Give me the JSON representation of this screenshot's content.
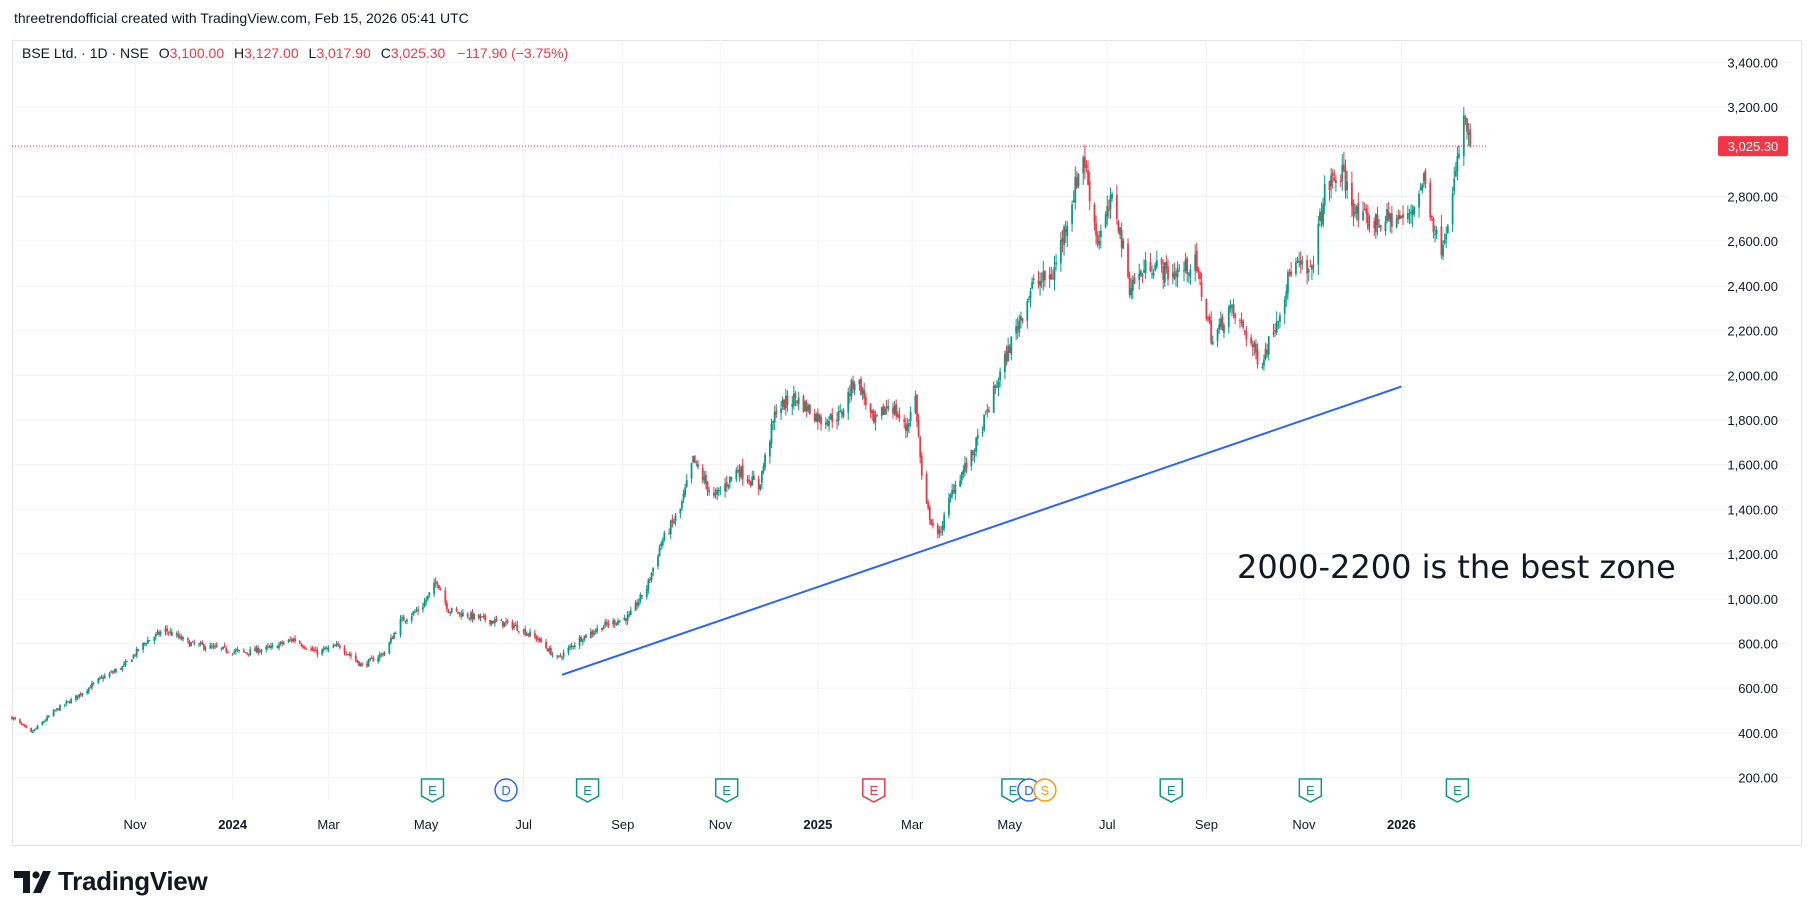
{
  "header": {
    "attribution": "threetrendofficial created with TradingView.com, Feb 15, 2026 05:41 UTC"
  },
  "legend": {
    "symbol": "BSE Ltd. · 1D · NSE",
    "o_label": "O",
    "o_value": "3,100.00",
    "h_label": "H",
    "h_value": "3,127.00",
    "l_label": "L",
    "l_value": "3,017.90",
    "c_label": "C",
    "c_value": "3,025.30",
    "change": "−117.90 (−3.75%)"
  },
  "brand": {
    "wordmark": "TradingView",
    "icon": "tradingview-logo-icon"
  },
  "colors": {
    "up": "#089981",
    "down": "#f23645",
    "trendline": "#2962ff",
    "grid": "#f0f3fa",
    "price_label_bg": "#f23645"
  },
  "chart_data": {
    "type": "candlestick",
    "title": "BSE Ltd. · 1D · NSE",
    "xlabel": "",
    "ylabel": "",
    "ylim": [
      100,
      3500
    ],
    "x_range": [
      "2023-08-16",
      "2026-02-16"
    ],
    "y_ticks": [
      {
        "value": 200,
        "label": "200.00"
      },
      {
        "value": 400,
        "label": "400.00"
      },
      {
        "value": 600,
        "label": "600.00"
      },
      {
        "value": 800,
        "label": "800.00"
      },
      {
        "value": 1000,
        "label": "1,000.00"
      },
      {
        "value": 1200,
        "label": "1,200.00"
      },
      {
        "value": 1400,
        "label": "1,400.00"
      },
      {
        "value": 1600,
        "label": "1,600.00"
      },
      {
        "value": 1800,
        "label": "1,800.00"
      },
      {
        "value": 2000,
        "label": "2,000.00"
      },
      {
        "value": 2200,
        "label": "2,200.00"
      },
      {
        "value": 2400,
        "label": "2,400.00"
      },
      {
        "value": 2600,
        "label": "2,600.00"
      },
      {
        "value": 2800,
        "label": "2,800.00"
      },
      {
        "value": 3200,
        "label": "3,200.00"
      },
      {
        "value": 3400,
        "label": "3,400.00"
      }
    ],
    "x_ticks": [
      {
        "date": "2023-11-01",
        "label": "Nov",
        "bold": false
      },
      {
        "date": "2024-01-01",
        "label": "2024",
        "bold": true
      },
      {
        "date": "2024-03-01",
        "label": "Mar",
        "bold": false
      },
      {
        "date": "2024-05-01",
        "label": "May",
        "bold": false
      },
      {
        "date": "2024-07-01",
        "label": "Jul",
        "bold": false
      },
      {
        "date": "2024-09-01",
        "label": "Sep",
        "bold": false
      },
      {
        "date": "2024-11-01",
        "label": "Nov",
        "bold": false
      },
      {
        "date": "2025-01-01",
        "label": "2025",
        "bold": true
      },
      {
        "date": "2025-03-01",
        "label": "Mar",
        "bold": false
      },
      {
        "date": "2025-05-01",
        "label": "May",
        "bold": false
      },
      {
        "date": "2025-07-01",
        "label": "Jul",
        "bold": false
      },
      {
        "date": "2025-09-01",
        "label": "Sep",
        "bold": false
      },
      {
        "date": "2025-11-01",
        "label": "Nov",
        "bold": false
      },
      {
        "date": "2026-01-01",
        "label": "2026",
        "bold": true
      }
    ],
    "price_path": [
      [
        "2023-08-16",
        470
      ],
      [
        "2023-08-28",
        400
      ],
      [
        "2023-09-12",
        500
      ],
      [
        "2023-09-25",
        560
      ],
      [
        "2023-10-10",
        640
      ],
      [
        "2023-10-25",
        700
      ],
      [
        "2023-11-08",
        810
      ],
      [
        "2023-11-20",
        860
      ],
      [
        "2023-12-05",
        800
      ],
      [
        "2023-12-20",
        780
      ],
      [
        "2024-01-08",
        760
      ],
      [
        "2024-01-25",
        780
      ],
      [
        "2024-02-08",
        820
      ],
      [
        "2024-02-22",
        760
      ],
      [
        "2024-03-08",
        790
      ],
      [
        "2024-03-22",
        700
      ],
      [
        "2024-04-05",
        760
      ],
      [
        "2024-04-15",
        900
      ],
      [
        "2024-04-28",
        960
      ],
      [
        "2024-05-08",
        1080
      ],
      [
        "2024-05-15",
        950
      ],
      [
        "2024-05-30",
        920
      ],
      [
        "2024-06-12",
        900
      ],
      [
        "2024-06-25",
        880
      ],
      [
        "2024-07-10",
        820
      ],
      [
        "2024-07-22",
        730
      ],
      [
        "2024-08-05",
        820
      ],
      [
        "2024-08-20",
        880
      ],
      [
        "2024-09-05",
        920
      ],
      [
        "2024-09-16",
        1050
      ],
      [
        "2024-09-25",
        1250
      ],
      [
        "2024-10-07",
        1400
      ],
      [
        "2024-10-15",
        1620
      ],
      [
        "2024-10-28",
        1450
      ],
      [
        "2024-11-12",
        1580
      ],
      [
        "2024-11-25",
        1500
      ],
      [
        "2024-12-06",
        1850
      ],
      [
        "2024-12-18",
        1900
      ],
      [
        "2025-01-03",
        1800
      ],
      [
        "2025-01-15",
        1820
      ],
      [
        "2025-01-25",
        2000
      ],
      [
        "2025-02-05",
        1780
      ],
      [
        "2025-02-15",
        1880
      ],
      [
        "2025-02-25",
        1760
      ],
      [
        "2025-03-03",
        1900
      ],
      [
        "2025-03-08",
        1450
      ],
      [
        "2025-03-17",
        1270
      ],
      [
        "2025-03-27",
        1500
      ],
      [
        "2025-04-08",
        1650
      ],
      [
        "2025-04-20",
        1900
      ],
      [
        "2025-05-02",
        2150
      ],
      [
        "2025-05-15",
        2400
      ],
      [
        "2025-05-28",
        2450
      ],
      [
        "2025-06-06",
        2700
      ],
      [
        "2025-06-16",
        2990
      ],
      [
        "2025-06-25",
        2600
      ],
      [
        "2025-07-05",
        2800
      ],
      [
        "2025-07-15",
        2400
      ],
      [
        "2025-07-28",
        2500
      ],
      [
        "2025-08-10",
        2450
      ],
      [
        "2025-08-25",
        2500
      ],
      [
        "2025-09-05",
        2150
      ],
      [
        "2025-09-15",
        2300
      ],
      [
        "2025-09-25",
        2200
      ],
      [
        "2025-10-05",
        2050
      ],
      [
        "2025-10-15",
        2250
      ],
      [
        "2025-10-25",
        2500
      ],
      [
        "2025-11-05",
        2450
      ],
      [
        "2025-11-15",
        2850
      ],
      [
        "2025-11-25",
        2900
      ],
      [
        "2025-12-05",
        2700
      ],
      [
        "2025-12-15",
        2680
      ],
      [
        "2025-12-25",
        2700
      ],
      [
        "2026-01-05",
        2700
      ],
      [
        "2026-01-15",
        2880
      ],
      [
        "2026-01-25",
        2550
      ],
      [
        "2026-02-02",
        2800
      ],
      [
        "2026-02-09",
        3150
      ],
      [
        "2026-02-13",
        3025.3
      ]
    ],
    "last_candle": {
      "date": "2026-02-13",
      "open": 3100.0,
      "high": 3127.0,
      "low": 3017.9,
      "close": 3025.3
    },
    "last_price": {
      "value": 3025.3,
      "label": "3,025.30"
    },
    "trendline": {
      "start": {
        "date": "2024-07-25",
        "price": 660
      },
      "end": {
        "date": "2026-01-01",
        "price": 1950
      }
    },
    "annotation": "2000-2200 is the best zone",
    "events": [
      {
        "date": "2024-05-05",
        "type": "earnings",
        "letter": "E",
        "tone": "green"
      },
      {
        "date": "2024-06-20",
        "type": "dividend",
        "letter": "D",
        "tone": "blue"
      },
      {
        "date": "2024-08-10",
        "type": "earnings",
        "letter": "E",
        "tone": "green"
      },
      {
        "date": "2024-11-05",
        "type": "earnings",
        "letter": "E",
        "tone": "green"
      },
      {
        "date": "2025-02-05",
        "type": "earnings",
        "letter": "E",
        "tone": "red"
      },
      {
        "date": "2025-05-03",
        "type": "earnings",
        "letter": "E",
        "tone": "green"
      },
      {
        "date": "2025-05-13",
        "type": "dividend",
        "letter": "D",
        "tone": "blue"
      },
      {
        "date": "2025-05-23",
        "type": "split",
        "letter": "S",
        "tone": "orange"
      },
      {
        "date": "2025-08-10",
        "type": "earnings",
        "letter": "E",
        "tone": "green"
      },
      {
        "date": "2025-11-05",
        "type": "earnings",
        "letter": "E",
        "tone": "green"
      },
      {
        "date": "2026-02-05",
        "type": "earnings",
        "letter": "E",
        "tone": "green"
      }
    ]
  }
}
